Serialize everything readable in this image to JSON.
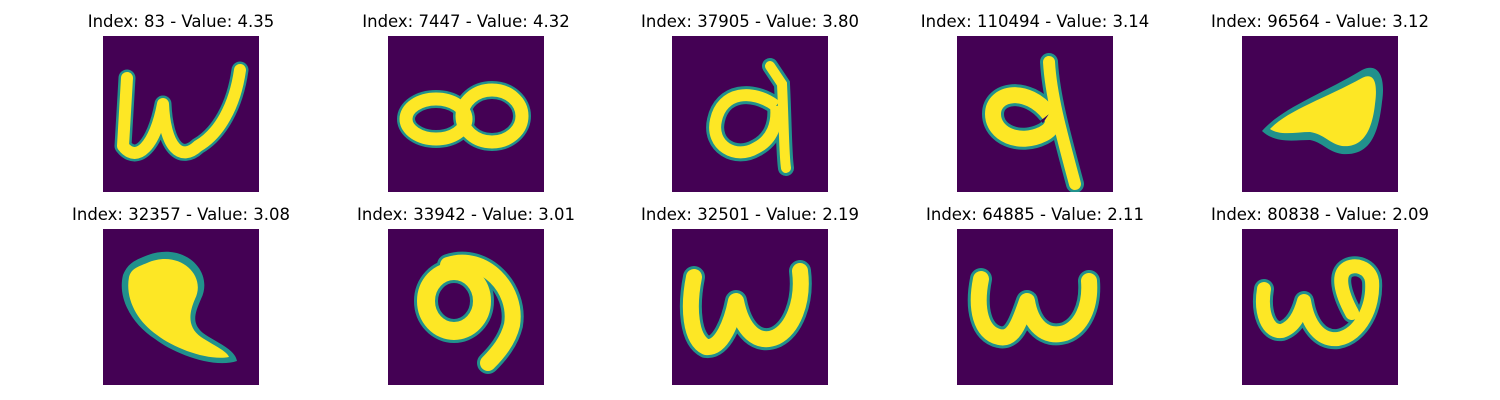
{
  "colors": {
    "background_cell": "#440154",
    "foreground_glyph": "#fde725",
    "edge_glyph": "#21918c"
  },
  "panels": [
    {
      "title": "Index: 83 - Value: 4.35",
      "glyph": "w-shape"
    },
    {
      "title": "Index: 7447 - Value: 4.32",
      "glyph": "double-loop"
    },
    {
      "title": "Index: 37905 - Value: 3.80",
      "glyph": "a-shape"
    },
    {
      "title": "Index: 110494 - Value: 3.14",
      "glyph": "nine-shape"
    },
    {
      "title": "Index: 96564 - Value: 3.12",
      "glyph": "leaf-shape"
    },
    {
      "title": "Index: 32357 - Value: 3.08",
      "glyph": "blob-shape"
    },
    {
      "title": "Index: 33942 - Value: 3.01",
      "glyph": "nine-shape"
    },
    {
      "title": "Index: 32501 - Value: 2.19",
      "glyph": "w-shape"
    },
    {
      "title": "Index: 64885 - Value: 2.11",
      "glyph": "w-shape"
    },
    {
      "title": "Index: 80838 - Value: 2.09",
      "glyph": "w-open-shape"
    }
  ]
}
